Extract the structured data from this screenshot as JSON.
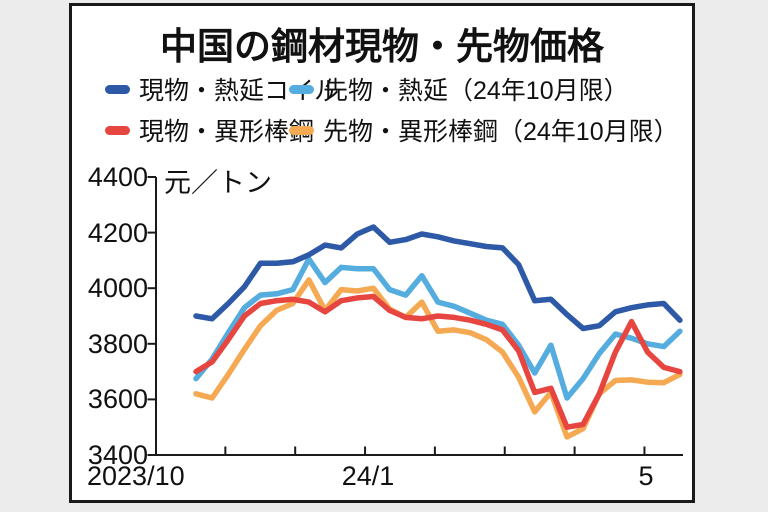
{
  "colors": {
    "page_bg": "#ececec",
    "card_bg": "#ffffff",
    "border": "#1a1a1a",
    "axis": "#1a1a1a",
    "text": "#111111"
  },
  "title": "中国の鋼材現物・先物価格",
  "unit_label": "元／トン",
  "legend": [
    {
      "label": "現物・熱延コイル",
      "color": "#2d59a6"
    },
    {
      "label": "先物・熱延（24年10月限）",
      "color": "#55acde"
    },
    {
      "label": "現物・異形棒鋼",
      "color": "#e6463f"
    },
    {
      "label": "先物・異形棒鋼（24年10月限）",
      "color": "#f5a952"
    }
  ],
  "chart_data": {
    "type": "line",
    "title": "中国の鋼材現物・先物価格",
    "ylabel": "元／トン",
    "ylim": [
      3400,
      4400
    ],
    "y_ticks": [
      4400,
      4200,
      4000,
      3800,
      3600,
      3400
    ],
    "grid": false,
    "legend_position": "top",
    "x_axis": {
      "labels": [
        {
          "text": "2023/10",
          "month": 0,
          "align": "left"
        },
        {
          "text": "24/1",
          "month": 3,
          "align": "center"
        },
        {
          "text": "5",
          "month": 7,
          "align": "center"
        }
      ],
      "tick_months": [
        1,
        2,
        3,
        4,
        5,
        6,
        7
      ],
      "note": "weekly points from mid-Oct 2023 to mid-May 2024"
    },
    "series": [
      {
        "name": "現物・熱延コイル",
        "color": "#2d59a6",
        "values": [
          3900,
          3890,
          3945,
          4005,
          4090,
          4090,
          4095,
          4120,
          4155,
          4145,
          4195,
          4220,
          4165,
          4175,
          4195,
          4185,
          4170,
          4160,
          4150,
          4145,
          4085,
          3955,
          3960,
          3905,
          3855,
          3865,
          3915,
          3930,
          3940,
          3945,
          3885
        ]
      },
      {
        "name": "先物・熱延（24年10月限）",
        "color": "#55acde",
        "values": [
          3675,
          3745,
          3840,
          3930,
          3975,
          3980,
          3995,
          4105,
          4020,
          4075,
          4070,
          4070,
          3995,
          3975,
          4045,
          3950,
          3935,
          3910,
          3885,
          3870,
          3795,
          3695,
          3795,
          3605,
          3675,
          3765,
          3835,
          3820,
          3800,
          3790,
          3845
        ]
      },
      {
        "name": "現物・異形棒鋼",
        "color": "#e6463f",
        "values": [
          3700,
          3735,
          3815,
          3900,
          3945,
          3955,
          3960,
          3950,
          3915,
          3955,
          3965,
          3970,
          3920,
          3895,
          3890,
          3900,
          3895,
          3885,
          3870,
          3850,
          3775,
          3625,
          3640,
          3500,
          3510,
          3620,
          3770,
          3880,
          3770,
          3715,
          3700
        ]
      },
      {
        "name": "先物・異形棒鋼（24年10月限）",
        "color": "#f5a952",
        "values": [
          3620,
          3605,
          3690,
          3780,
          3865,
          3920,
          3945,
          4030,
          3920,
          3995,
          3990,
          4000,
          3925,
          3895,
          3950,
          3845,
          3850,
          3840,
          3815,
          3770,
          3680,
          3555,
          3625,
          3465,
          3495,
          3620,
          3668,
          3670,
          3662,
          3660,
          3690
        ]
      }
    ]
  }
}
